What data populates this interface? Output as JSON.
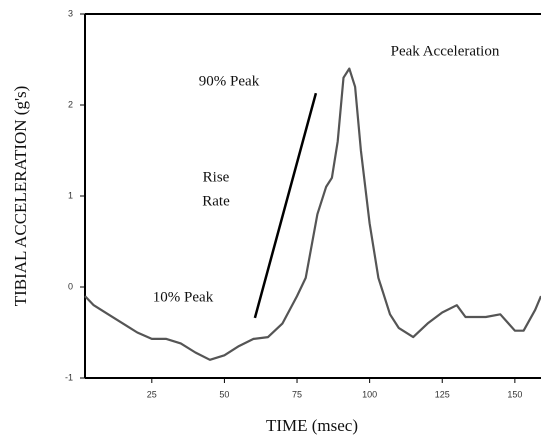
{
  "chart_data": {
    "type": "line",
    "x_label": "TIME (msec)",
    "y_label": "TIBIAL ACCELERATION (g's)",
    "xlim": [
      2,
      159
    ],
    "ylim": [
      -1,
      3
    ],
    "xticks": [
      25,
      50,
      75,
      100,
      125,
      150
    ],
    "yticks": [
      -1,
      0,
      1,
      2,
      3
    ],
    "series": [
      {
        "color": "#555555",
        "x": [
          2,
          5,
          10,
          15,
          20,
          25,
          30,
          35,
          40,
          45,
          50,
          55,
          60,
          65,
          70,
          75,
          78,
          82,
          85,
          87,
          89,
          91,
          93,
          95,
          97,
          100,
          103,
          107,
          110,
          115,
          120,
          125,
          130,
          133,
          140,
          145,
          150,
          153,
          157,
          159
        ],
        "values": [
          -0.1,
          -0.2,
          -0.3,
          -0.4,
          -0.5,
          -0.57,
          -0.57,
          -0.62,
          -0.72,
          -0.8,
          -0.75,
          -0.65,
          -0.57,
          -0.55,
          -0.4,
          -0.1,
          0.1,
          0.8,
          1.1,
          1.2,
          1.6,
          2.3,
          2.4,
          2.2,
          1.5,
          0.7,
          0.1,
          -0.3,
          -0.45,
          -0.55,
          -0.4,
          -0.28,
          -0.2,
          -0.33,
          -0.33,
          -0.3,
          -0.48,
          -0.48,
          -0.25,
          -0.1
        ]
      }
    ],
    "rise_line": {
      "color": "#000000",
      "x": [
        60.5,
        81.5
      ],
      "values": [
        -0.34,
        2.13
      ]
    },
    "annotations": [
      "Peak Acceleration",
      "90% Peak",
      "Rise",
      "Rate",
      "10% Peak"
    ]
  }
}
